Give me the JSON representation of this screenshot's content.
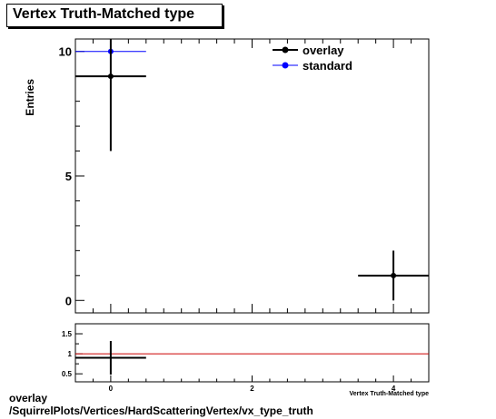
{
  "chart_data": {
    "type": "scatter",
    "title": "Vertex Truth-Matched type",
    "ylabel": "Entries",
    "xlabel": "Vertex Truth-Matched type",
    "xlim": [
      -0.5,
      4.5
    ],
    "ylim": [
      -0.5,
      10.5
    ],
    "x_ticks": [
      0,
      2,
      4
    ],
    "y_ticks": [
      0,
      5,
      10
    ],
    "legend_position": "top-right",
    "series": [
      {
        "name": "overlay",
        "color": "#000000",
        "points": [
          {
            "x": 0,
            "y": 9,
            "xerr": 0.5,
            "yerr": 3
          },
          {
            "x": 4,
            "y": 1,
            "xerr": 0.5,
            "yerr": 1
          }
        ]
      },
      {
        "name": "standard",
        "color": "#0000ff",
        "points": [
          {
            "x": 0,
            "y": 10,
            "xerr": 0.5,
            "yerr": 0
          }
        ]
      }
    ],
    "ratio": {
      "ylim": [
        0.3,
        1.75
      ],
      "y_ticks": [
        0.5,
        1,
        1.5
      ],
      "y_tick_labels": [
        "0.5",
        "1",
        "1.5"
      ],
      "reference_line": 1,
      "reference_color": "#cc0000",
      "points": [
        {
          "x": 0,
          "y": 0.9,
          "xerr": 0.5,
          "yerr": 0.42
        }
      ]
    }
  },
  "footer": {
    "line1": "overlay",
    "line2": "/SquirrelPlots/Vertices/HardScatteringVertex/vx_type_truth"
  }
}
